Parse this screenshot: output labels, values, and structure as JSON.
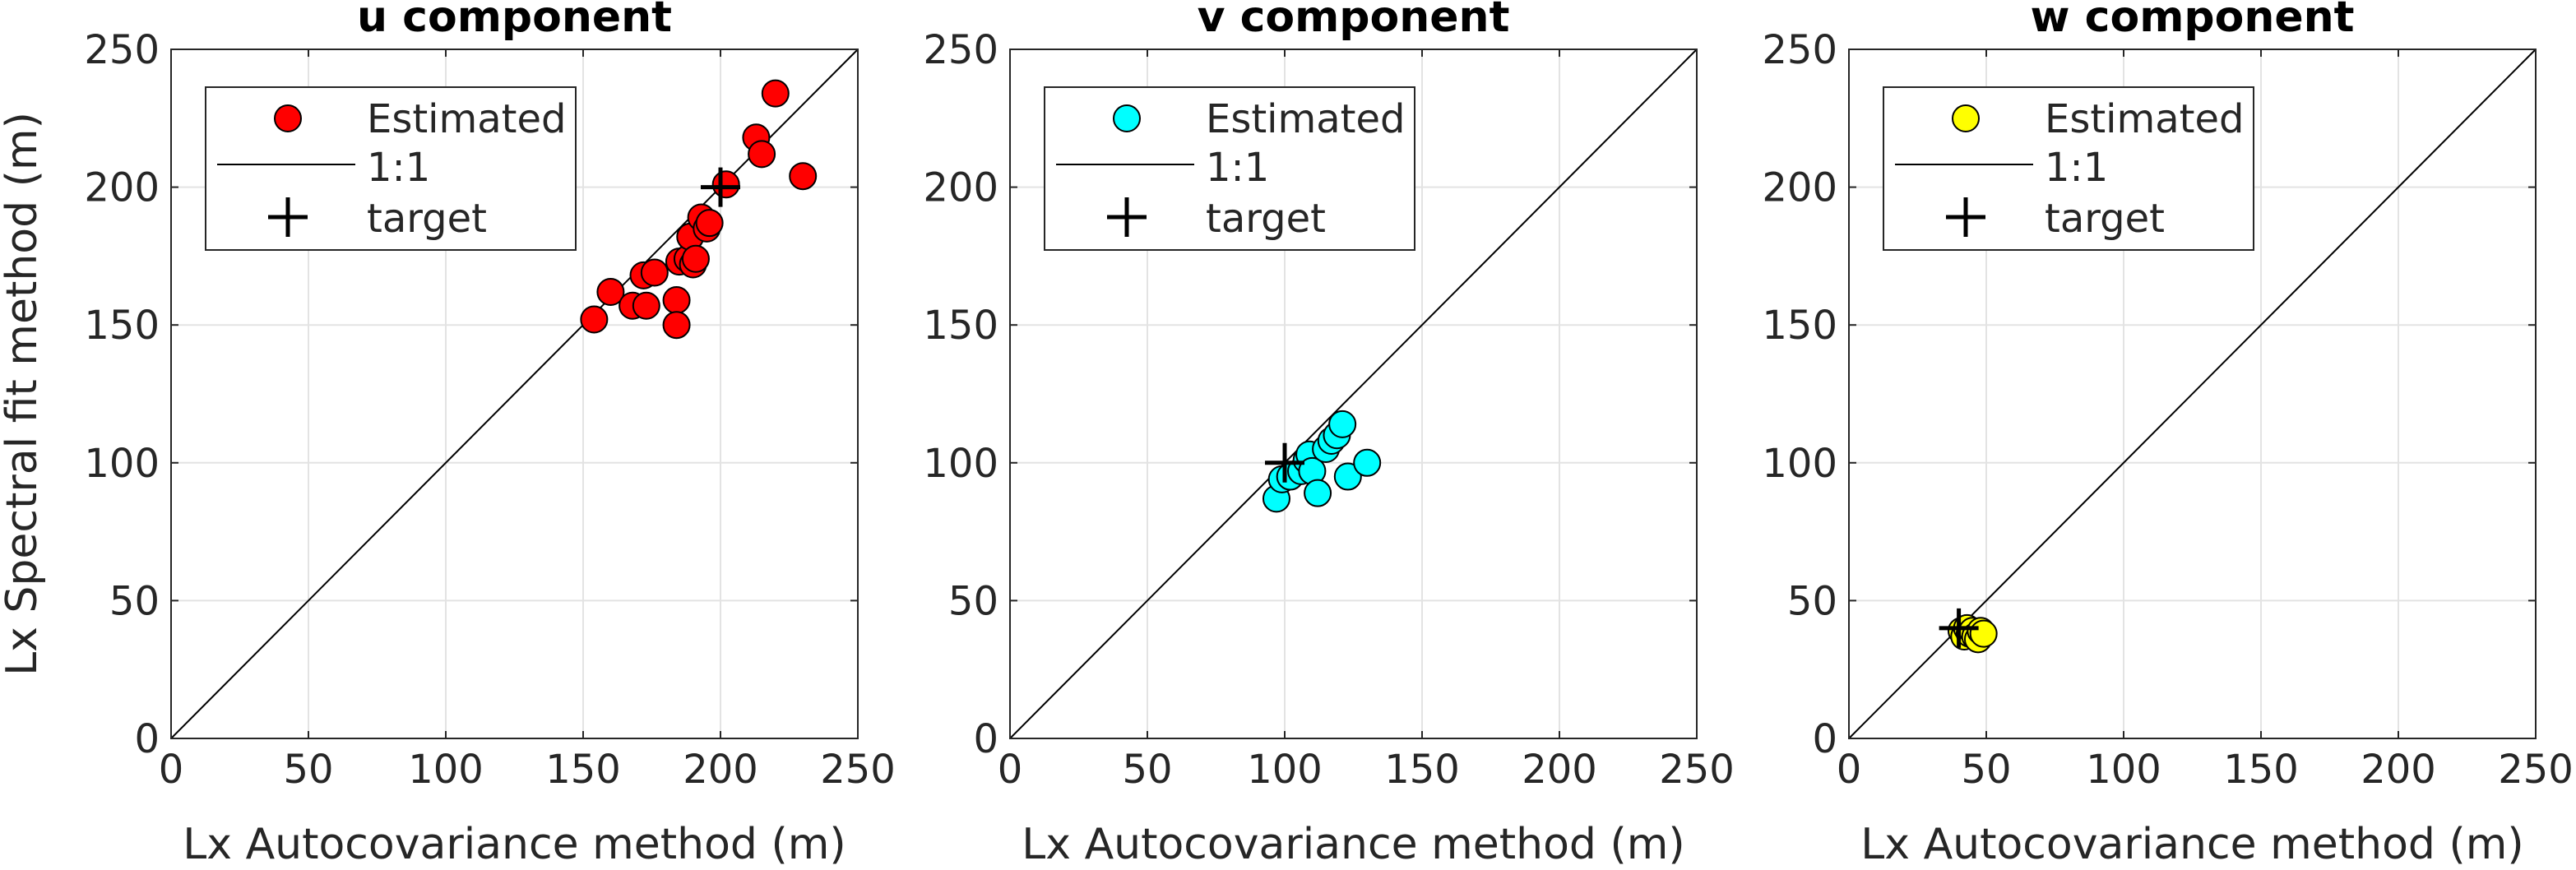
{
  "chart_data": [
    {
      "type": "scatter",
      "title": "u component",
      "xlabel": "Lx Autocovariance method (m)",
      "ylabel": "Lx Spectral fit method (m)",
      "xlim": [
        0,
        250
      ],
      "ylim": [
        0,
        250
      ],
      "xticks": [
        "0",
        "50",
        "100",
        "150",
        "200",
        "250"
      ],
      "yticks": [
        "0",
        "50",
        "100",
        "150",
        "200",
        "250"
      ],
      "grid": true,
      "legend": {
        "position": "top-left",
        "entries": [
          "Estimated",
          "1:1",
          "target"
        ]
      },
      "marker_color": "#ff0000",
      "series": [
        {
          "name": "Estimated",
          "points": [
            [
              154,
              152
            ],
            [
              160,
              162
            ],
            [
              168,
              157
            ],
            [
              172,
              168
            ],
            [
              173,
              157
            ],
            [
              176,
              169
            ],
            [
              184,
              159
            ],
            [
              184,
              150
            ],
            [
              185,
              173
            ],
            [
              188,
              174
            ],
            [
              189,
              182
            ],
            [
              190,
              172
            ],
            [
              191,
              174
            ],
            [
              193,
              189
            ],
            [
              195,
              185
            ],
            [
              196,
              187
            ],
            [
              202,
              201
            ],
            [
              213,
              218
            ],
            [
              215,
              212
            ],
            [
              220,
              234
            ],
            [
              230,
              204
            ]
          ]
        },
        {
          "name": "1:1",
          "points": [
            [
              0,
              0
            ],
            [
              250,
              250
            ]
          ]
        },
        {
          "name": "target",
          "points": [
            [
              200,
              200
            ]
          ]
        }
      ]
    },
    {
      "type": "scatter",
      "title": "v component",
      "xlabel": "Lx Autocovariance method (m)",
      "ylabel": "",
      "xlim": [
        0,
        250
      ],
      "ylim": [
        0,
        250
      ],
      "xticks": [
        "0",
        "50",
        "100",
        "150",
        "200",
        "250"
      ],
      "yticks": [
        "0",
        "50",
        "100",
        "150",
        "200",
        "250"
      ],
      "grid": true,
      "legend": {
        "position": "top-left",
        "entries": [
          "Estimated",
          "1:1",
          "target"
        ]
      },
      "marker_color": "#00ffff",
      "series": [
        {
          "name": "Estimated",
          "points": [
            [
              97,
              87
            ],
            [
              99,
              94
            ],
            [
              102,
              95
            ],
            [
              106,
              97
            ],
            [
              108,
              101
            ],
            [
              109,
              103
            ],
            [
              110,
              97
            ],
            [
              112,
              89
            ],
            [
              115,
              105
            ],
            [
              117,
              108
            ],
            [
              119,
              110
            ],
            [
              121,
              114
            ],
            [
              123,
              95
            ],
            [
              130,
              100
            ]
          ]
        },
        {
          "name": "1:1",
          "points": [
            [
              0,
              0
            ],
            [
              250,
              250
            ]
          ]
        },
        {
          "name": "target",
          "points": [
            [
              100,
              100
            ]
          ]
        }
      ]
    },
    {
      "type": "scatter",
      "title": "w component",
      "xlabel": "Lx Autocovariance method (m)",
      "ylabel": "",
      "xlim": [
        0,
        250
      ],
      "ylim": [
        0,
        250
      ],
      "xticks": [
        "0",
        "50",
        "100",
        "150",
        "200",
        "250"
      ],
      "yticks": [
        "0",
        "50",
        "100",
        "150",
        "200",
        "250"
      ],
      "grid": true,
      "legend": {
        "position": "top-left",
        "entries": [
          "Estimated",
          "1:1",
          "target"
        ]
      },
      "marker_color": "#ffff00",
      "series": [
        {
          "name": "Estimated",
          "points": [
            [
              41,
              39
            ],
            [
              42,
              37
            ],
            [
              43,
              40
            ],
            [
              44,
              38
            ],
            [
              45,
              39
            ],
            [
              46,
              37
            ],
            [
              47,
              36
            ],
            [
              48,
              39
            ],
            [
              49,
              38
            ]
          ]
        },
        {
          "name": "1:1",
          "points": [
            [
              0,
              0
            ],
            [
              250,
              250
            ]
          ]
        },
        {
          "name": "target",
          "points": [
            [
              40,
              40
            ]
          ]
        }
      ]
    }
  ]
}
